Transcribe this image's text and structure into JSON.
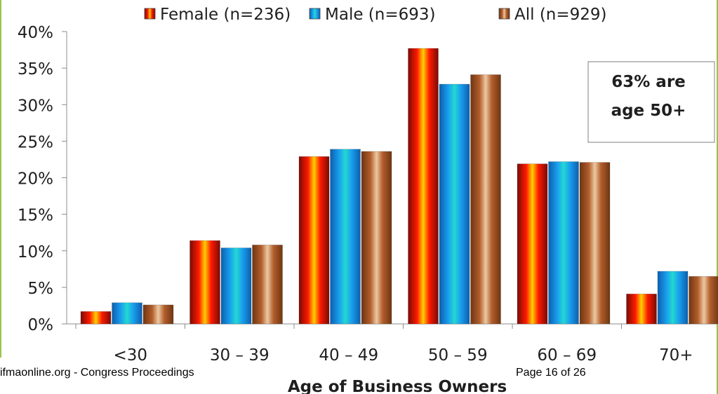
{
  "chart_data": {
    "type": "bar",
    "categories": [
      "<30",
      "30 – 39",
      "40 – 49",
      "50 – 59",
      "60 – 69",
      "70+"
    ],
    "series": [
      {
        "name": "Female (n=236)",
        "values": [
          1.7,
          11.4,
          22.9,
          37.7,
          21.9,
          4.1
        ]
      },
      {
        "name": "Male (n=693)",
        "values": [
          2.9,
          10.4,
          23.9,
          32.8,
          22.2,
          7.2
        ]
      },
      {
        "name": "All (n=929)",
        "values": [
          2.6,
          10.8,
          23.6,
          34.1,
          22.1,
          6.5
        ]
      }
    ],
    "y_tick_labels": [
      "0%",
      "5%",
      "10%",
      "15%",
      "20%",
      "25%",
      "30%",
      "35%",
      "40%"
    ],
    "ylim": [
      0,
      40
    ],
    "xlabel": "Age of Business Owners",
    "ylabel": "",
    "legend_position": "top",
    "grid": false,
    "annotation": {
      "line1": "63% are",
      "line2": "age 50+"
    },
    "colors": {
      "Female (n=236)": {
        "edge": "#7a0a05",
        "mid": "#ff1a00",
        "center": "#ffd000"
      },
      "Male (n=693)": {
        "edge": "#0b5fae",
        "mid": "#1aa0ef",
        "center": "#22d9d0"
      },
      "All (n=929)": {
        "edge": "#6e3512",
        "mid": "#b35e2c",
        "center": "#ecc9a2"
      }
    }
  },
  "footer": {
    "source": "ifmaonline.org - Congress Proceedings",
    "page": "Page 16 of 26"
  }
}
